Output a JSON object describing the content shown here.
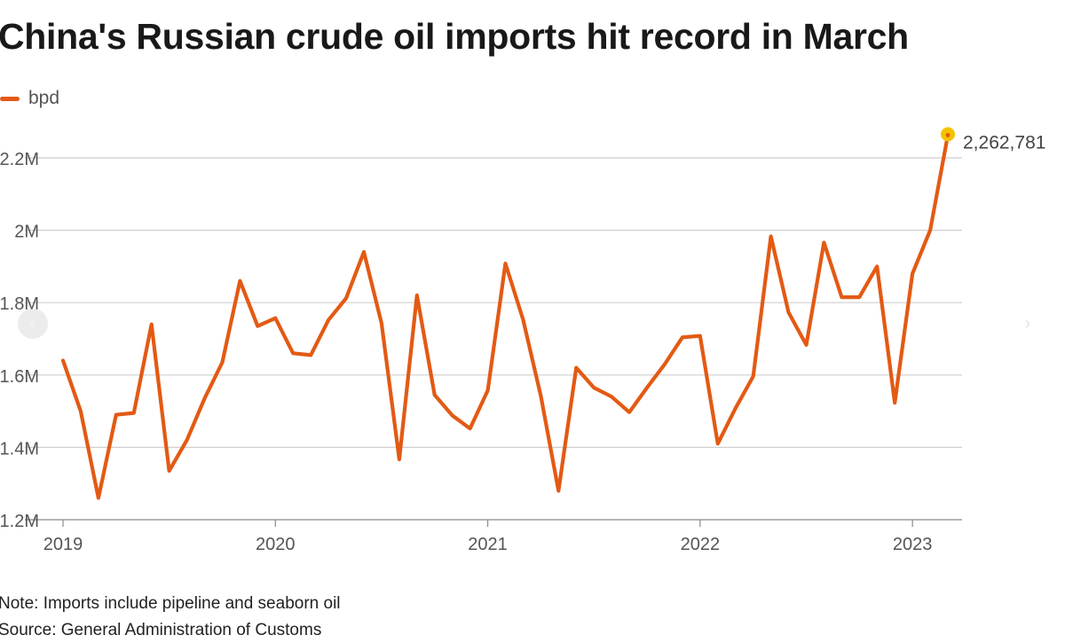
{
  "title": "China's Russian crude oil imports hit record in March",
  "legend": {
    "label": "bpd",
    "color": "#e35a14"
  },
  "note": "Note: Imports include pipeline and seaborn oil",
  "source": "Source: General Administration of Customs",
  "nav": {
    "prev_icon": "chevron-left-icon",
    "next_icon": "chevron-right-icon",
    "prev_glyph": "‹",
    "next_glyph": "›"
  },
  "colors": {
    "line": "#e35a14",
    "highlight": "#f5c200",
    "grid": "#cfcfcf",
    "axis": "#555555"
  },
  "chart_data": {
    "type": "line",
    "x_start": "2019-01",
    "x_end": "2023-03",
    "ylim": [
      1200000,
      2300000
    ],
    "yticks": [
      {
        "value": 1200000,
        "label": "1.2M"
      },
      {
        "value": 1400000,
        "label": "1.4M"
      },
      {
        "value": 1600000,
        "label": "1.6M"
      },
      {
        "value": 1800000,
        "label": "1.8M"
      },
      {
        "value": 2000000,
        "label": "2M"
      },
      {
        "value": 2200000,
        "label": "2.2M"
      }
    ],
    "xticks": [
      {
        "x": "2019-01",
        "label": "2019"
      },
      {
        "x": "2020-01",
        "label": "2020"
      },
      {
        "x": "2021-01",
        "label": "2021"
      },
      {
        "x": "2022-01",
        "label": "2022"
      },
      {
        "x": "2023-01",
        "label": "2023"
      }
    ],
    "series": [
      {
        "name": "bpd",
        "x": [
          "2019-01",
          "2019-02",
          "2019-03",
          "2019-04",
          "2019-05",
          "2019-06",
          "2019-07",
          "2019-08",
          "2019-09",
          "2019-10",
          "2019-11",
          "2019-12",
          "2020-01",
          "2020-02",
          "2020-03",
          "2020-04",
          "2020-05",
          "2020-06",
          "2020-07",
          "2020-08",
          "2020-09",
          "2020-10",
          "2020-11",
          "2020-12",
          "2021-01",
          "2021-02",
          "2021-03",
          "2021-04",
          "2021-05",
          "2021-06",
          "2021-07",
          "2021-08",
          "2021-09",
          "2021-10",
          "2021-11",
          "2021-12",
          "2022-01",
          "2022-02",
          "2022-03",
          "2022-04",
          "2022-05",
          "2022-06",
          "2022-07",
          "2022-08",
          "2022-09",
          "2022-10",
          "2022-11",
          "2022-12",
          "2023-01",
          "2023-02",
          "2023-03"
        ],
        "values": [
          1640000,
          1500000,
          1260000,
          1490000,
          1495000,
          1740000,
          1335000,
          1420000,
          1535000,
          1635000,
          1860000,
          1735000,
          1757000,
          1660000,
          1655000,
          1752000,
          1812000,
          1940000,
          1743000,
          1367000,
          1820000,
          1545000,
          1488000,
          1452000,
          1557000,
          1908000,
          1753000,
          1542000,
          1280000,
          1620000,
          1565000,
          1540000,
          1497000,
          1565000,
          1630000,
          1704000,
          1708000,
          1410000,
          1508000,
          1596000,
          1983000,
          1773000,
          1683000,
          1966000,
          1815000,
          1815000,
          1900000,
          1523000,
          1880000,
          2000000,
          2262781
        ]
      }
    ],
    "annotation": {
      "x": "2023-03",
      "value": 2262781,
      "label": "2,262,781"
    },
    "grid": true,
    "legend_position": "top-left"
  }
}
